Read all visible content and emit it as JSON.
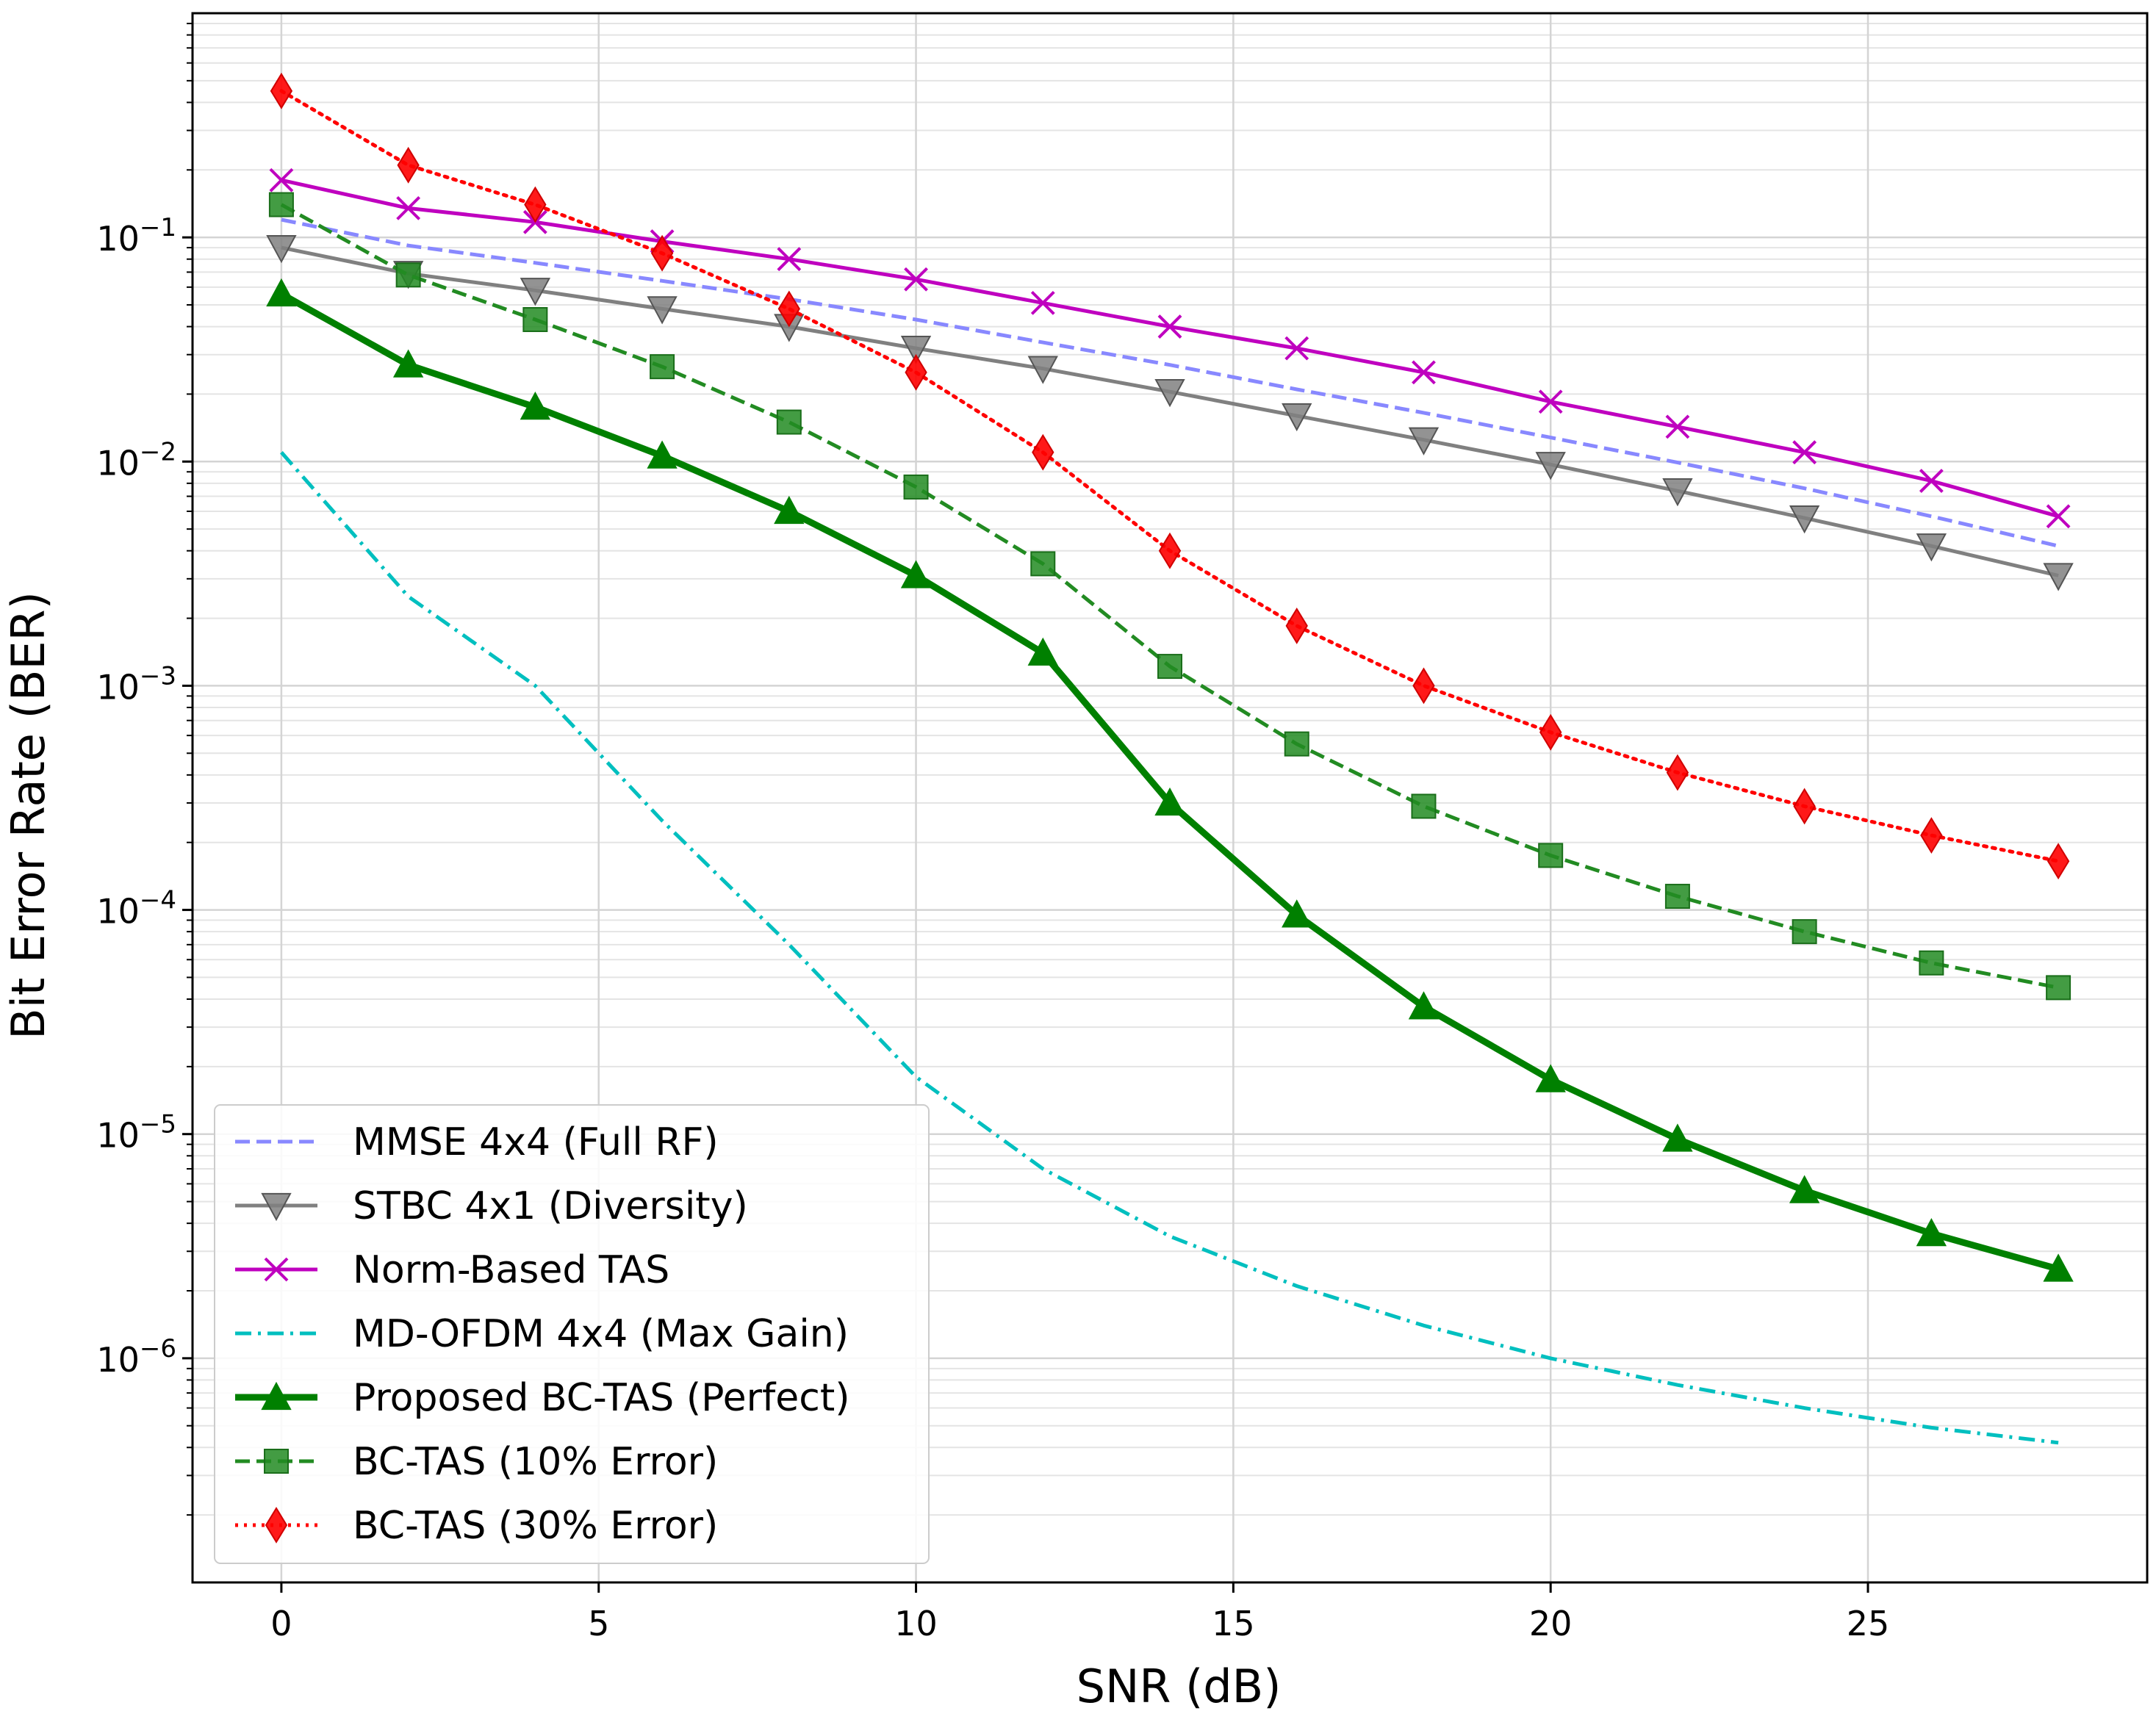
{
  "chart_data": {
    "type": "line",
    "title": "",
    "xlabel": "SNR (dB)",
    "ylabel": "Bit Error Rate (BER)",
    "xscale": "linear",
    "yscale": "log",
    "xlim": [
      -1.4,
      29.4
    ],
    "ylim": [
      1e-07,
      1.0
    ],
    "xticks": [
      0,
      5,
      10,
      15,
      20,
      25
    ],
    "yticks": [
      {
        "value": 0.1,
        "base": "10",
        "exp": "−1"
      },
      {
        "value": 0.01,
        "base": "10",
        "exp": "−2"
      },
      {
        "value": 0.001,
        "base": "10",
        "exp": "−3"
      },
      {
        "value": 0.0001,
        "base": "10",
        "exp": "−4"
      },
      {
        "value": 1e-05,
        "base": "10",
        "exp": "−5"
      },
      {
        "value": 1e-06,
        "base": "10",
        "exp": "−6"
      }
    ],
    "grid": true,
    "legend_position": "lower-left",
    "series": [
      {
        "name": "MMSE 4x4 (Full RF)",
        "color": "#8888ff",
        "dash": "dashed",
        "marker": "none",
        "x": [
          0,
          2,
          4,
          6,
          8,
          10,
          12,
          14,
          16,
          18,
          20,
          22,
          24,
          26,
          28
        ],
        "y": [
          0.12,
          0.092,
          0.077,
          0.064,
          0.053,
          0.043,
          0.034,
          0.027,
          0.021,
          0.0165,
          0.0128,
          0.0099,
          0.0076,
          0.0057,
          0.0042
        ]
      },
      {
        "name": "STBC 4x1 (Diversity)",
        "color": "#808080",
        "dash": "solid",
        "marker": "triangle-down",
        "x": [
          0,
          2,
          4,
          6,
          8,
          10,
          12,
          14,
          16,
          18,
          20,
          22,
          24,
          26,
          28
        ],
        "y": [
          0.09,
          0.069,
          0.058,
          0.048,
          0.04,
          0.032,
          0.026,
          0.0205,
          0.016,
          0.0125,
          0.0097,
          0.0074,
          0.0056,
          0.0042,
          0.0031
        ]
      },
      {
        "name": "Norm-Based TAS",
        "color": "#bf00bf",
        "dash": "solid",
        "marker": "x",
        "x": [
          0,
          2,
          4,
          6,
          8,
          10,
          12,
          14,
          16,
          18,
          20,
          22,
          24,
          26,
          28
        ],
        "y": [
          0.18,
          0.135,
          0.117,
          0.096,
          0.08,
          0.065,
          0.051,
          0.04,
          0.032,
          0.025,
          0.0185,
          0.0143,
          0.011,
          0.0082,
          0.0057
        ]
      },
      {
        "name": "MD-OFDM 4x4 (Max Gain)",
        "color": "#00bfbf",
        "dash": "dashdot",
        "marker": "none",
        "x": [
          0,
          2,
          4,
          6,
          8,
          10,
          12,
          14,
          16,
          18,
          20,
          22,
          24,
          26,
          28
        ],
        "y": [
          0.011,
          0.0025,
          0.001,
          0.00025,
          7e-05,
          1.8e-05,
          7e-06,
          3.5e-06,
          2.1e-06,
          1.4e-06,
          1e-06,
          7.6e-07,
          6e-07,
          4.9e-07,
          4.2e-07
        ]
      },
      {
        "name": "Proposed BC-TAS (Perfect)",
        "color": "#008000",
        "dash": "solid",
        "width": "thick",
        "marker": "triangle-up",
        "x": [
          0,
          2,
          4,
          6,
          8,
          10,
          12,
          14,
          16,
          18,
          20,
          22,
          24,
          26,
          28
        ],
        "y": [
          0.056,
          0.027,
          0.0175,
          0.0106,
          0.006,
          0.0031,
          0.0014,
          0.0003,
          9.5e-05,
          3.7e-05,
          1.75e-05,
          9.5e-06,
          5.6e-06,
          3.6e-06,
          2.5e-06
        ]
      },
      {
        "name": "BC-TAS (10% Error)",
        "color": "#228b22",
        "dash": "dashed",
        "marker": "square",
        "x": [
          0,
          2,
          4,
          6,
          8,
          10,
          12,
          14,
          16,
          18,
          20,
          22,
          24,
          26,
          28
        ],
        "y": [
          0.14,
          0.068,
          0.043,
          0.0265,
          0.015,
          0.0077,
          0.0035,
          0.00122,
          0.00055,
          0.00029,
          0.000175,
          0.000115,
          8e-05,
          5.8e-05,
          4.5e-05
        ]
      },
      {
        "name": "BC-TAS (30% Error)",
        "color": "#ff0000",
        "dash": "dotted",
        "marker": "diamond",
        "x": [
          0,
          2,
          4,
          6,
          8,
          10,
          12,
          14,
          16,
          18,
          20,
          22,
          24,
          26,
          28
        ],
        "y": [
          0.45,
          0.21,
          0.14,
          0.085,
          0.048,
          0.025,
          0.011,
          0.004,
          0.00185,
          0.001,
          0.00062,
          0.00041,
          0.00029,
          0.000215,
          0.000165
        ]
      }
    ]
  }
}
